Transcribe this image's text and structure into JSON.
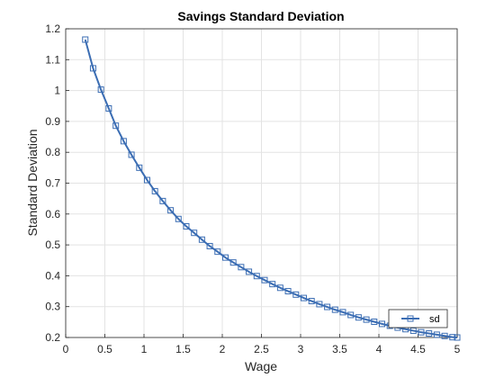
{
  "chart_data": {
    "type": "line",
    "title": "Savings Standard Deviation",
    "xlabel": "Wage",
    "ylabel": "Standard Deviation",
    "xlim": [
      0,
      5
    ],
    "ylim": [
      0.2,
      1.2
    ],
    "grid": true,
    "xticks": [
      0,
      0.5,
      1,
      1.5,
      2,
      2.5,
      3,
      3.5,
      4,
      4.5,
      5
    ],
    "yticks": [
      0.2,
      0.3,
      0.4,
      0.5,
      0.6,
      0.7,
      0.8,
      0.9,
      1.0,
      1.1,
      1.2
    ],
    "xtick_labels": [
      "0",
      "0.5",
      "1",
      "1.5",
      "2",
      "2.5",
      "3",
      "3.5",
      "4",
      "4.5",
      "5"
    ],
    "ytick_labels": [
      "0.2",
      "0.3",
      "0.4",
      "0.5",
      "0.6",
      "0.7",
      "0.8",
      "0.9",
      "1",
      "1.1",
      "1.2"
    ],
    "legend_position": "bottom-right",
    "series": [
      {
        "name": "sd",
        "color": "#3b6db3",
        "marker": "square",
        "x": [
          0.25,
          0.35,
          0.45,
          0.55,
          0.64,
          0.74,
          0.84,
          0.94,
          1.04,
          1.14,
          1.24,
          1.34,
          1.44,
          1.54,
          1.64,
          1.74,
          1.84,
          1.94,
          2.04,
          2.14,
          2.24,
          2.34,
          2.44,
          2.54,
          2.64,
          2.74,
          2.84,
          2.94,
          3.04,
          3.14,
          3.24,
          3.34,
          3.44,
          3.54,
          3.64,
          3.74,
          3.84,
          3.94,
          4.04,
          4.14,
          4.24,
          4.34,
          4.44,
          4.54,
          4.64,
          4.74,
          4.84,
          4.94,
          5.0
        ],
        "y": [
          1.165,
          1.072,
          1.003,
          0.942,
          0.886,
          0.836,
          0.792,
          0.75,
          0.71,
          0.674,
          0.642,
          0.612,
          0.584,
          0.56,
          0.539,
          0.517,
          0.496,
          0.478,
          0.459,
          0.443,
          0.428,
          0.413,
          0.399,
          0.386,
          0.373,
          0.361,
          0.35,
          0.339,
          0.328,
          0.318,
          0.308,
          0.299,
          0.29,
          0.282,
          0.273,
          0.265,
          0.258,
          0.251,
          0.244,
          0.238,
          0.232,
          0.227,
          0.222,
          0.217,
          0.213,
          0.209,
          0.205,
          0.201,
          0.2
        ]
      }
    ]
  }
}
